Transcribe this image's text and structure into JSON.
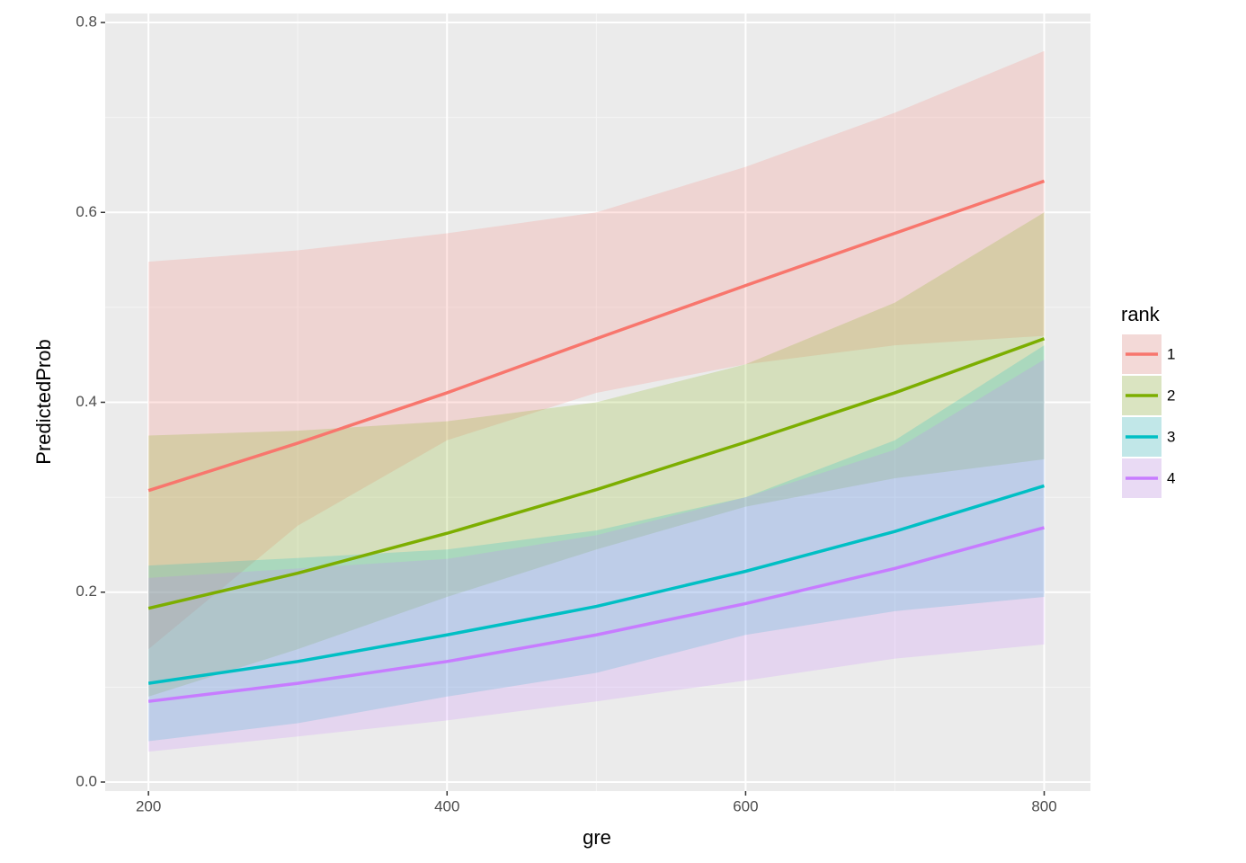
{
  "chart_data": {
    "type": "line",
    "x_label": "gre",
    "y_label": "PredictedProb",
    "legend_title": "rank",
    "legend_position": "right",
    "grid": true,
    "x": [
      200,
      300,
      400,
      500,
      600,
      700,
      800
    ],
    "xlim": [
      171,
      831
    ],
    "xticks": [
      200,
      400,
      600,
      800
    ],
    "minor_xticks": [
      300,
      500,
      700
    ],
    "ylim": [
      -0.0095,
      0.8095
    ],
    "yticks": [
      {
        "value": 0,
        "label": "0.0"
      },
      0.2,
      0.4,
      0.6,
      0.8
    ],
    "minor_yticks": [
      0.1,
      0.3,
      0.5,
      0.7
    ],
    "series": [
      {
        "name": "1",
        "color": "#F8766D",
        "values": [
          0.307,
          0.357,
          0.41,
          0.467,
          0.523,
          0.578,
          0.633
        ],
        "lower": [
          0.14,
          0.27,
          0.36,
          0.41,
          0.44,
          0.46,
          0.47
        ],
        "upper": [
          0.548,
          0.56,
          0.578,
          0.6,
          0.648,
          0.705,
          0.77
        ]
      },
      {
        "name": "2",
        "color": "#7CAE00",
        "values": [
          0.183,
          0.22,
          0.262,
          0.308,
          0.358,
          0.41,
          0.467
        ],
        "lower": [
          0.09,
          0.14,
          0.195,
          0.245,
          0.29,
          0.32,
          0.34
        ],
        "upper": [
          0.365,
          0.37,
          0.38,
          0.4,
          0.44,
          0.505,
          0.6
        ]
      },
      {
        "name": "3",
        "color": "#00BFC4",
        "values": [
          0.104,
          0.127,
          0.155,
          0.185,
          0.222,
          0.264,
          0.312
        ],
        "lower": [
          0.043,
          0.062,
          0.09,
          0.115,
          0.155,
          0.18,
          0.195
        ],
        "upper": [
          0.228,
          0.236,
          0.245,
          0.265,
          0.3,
          0.36,
          0.46
        ]
      },
      {
        "name": "4",
        "color": "#C77CFF",
        "values": [
          0.085,
          0.104,
          0.127,
          0.155,
          0.188,
          0.225,
          0.268
        ],
        "lower": [
          0.032,
          0.048,
          0.065,
          0.085,
          0.107,
          0.13,
          0.145
        ],
        "upper": [
          0.215,
          0.225,
          0.235,
          0.26,
          0.3,
          0.35,
          0.445
        ]
      }
    ]
  }
}
